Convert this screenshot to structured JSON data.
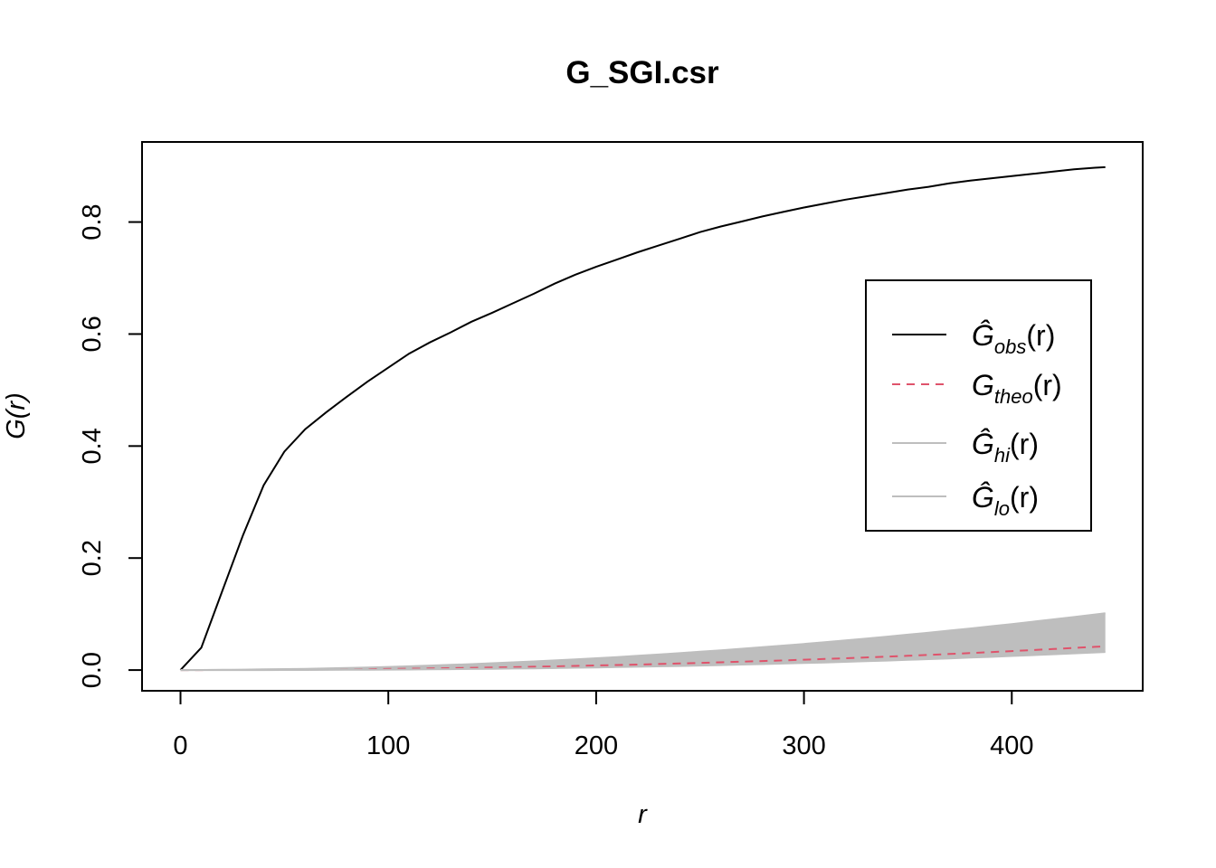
{
  "chart_data": {
    "type": "line",
    "title": "G_SGI.csr",
    "xlabel": "r",
    "ylabel": "G(r)",
    "xlim": [
      -18.5,
      463
    ],
    "ylim": [
      -0.037,
      0.943
    ],
    "x_ticks": [
      0,
      100,
      200,
      300,
      400
    ],
    "x_tick_labels": [
      "0",
      "100",
      "200",
      "300",
      "400"
    ],
    "y_ticks": [
      0.0,
      0.2,
      0.4,
      0.6,
      0.8
    ],
    "y_tick_labels": [
      "0.0",
      "0.2",
      "0.4",
      "0.6",
      "0.8"
    ],
    "grid": false,
    "legend_position": "right",
    "x": [
      0,
      10,
      20,
      30,
      40,
      50,
      60,
      70,
      80,
      90,
      100,
      110,
      120,
      130,
      140,
      150,
      160,
      170,
      180,
      190,
      200,
      210,
      220,
      230,
      240,
      250,
      260,
      270,
      280,
      290,
      300,
      310,
      320,
      330,
      340,
      350,
      360,
      370,
      380,
      390,
      400,
      410,
      420,
      430,
      440,
      445
    ],
    "series": [
      {
        "name": "obs",
        "label_main": "Ĝ",
        "label_sub": "obs",
        "label_tail": "(r)",
        "style": "solid",
        "color": "#000000",
        "values": [
          0.0,
          0.04,
          0.14,
          0.24,
          0.33,
          0.39,
          0.43,
          0.46,
          0.488,
          0.515,
          0.54,
          0.565,
          0.585,
          0.603,
          0.622,
          0.638,
          0.655,
          0.672,
          0.69,
          0.706,
          0.72,
          0.733,
          0.746,
          0.758,
          0.77,
          0.782,
          0.792,
          0.801,
          0.81,
          0.818,
          0.826,
          0.833,
          0.84,
          0.846,
          0.852,
          0.858,
          0.863,
          0.869,
          0.874,
          0.878,
          0.882,
          0.886,
          0.89,
          0.894,
          0.897,
          0.898
        ]
      },
      {
        "name": "theo",
        "label_main": "G",
        "label_sub": "theo",
        "label_tail": "(r)",
        "style": "dashed",
        "color": "#DF536B",
        "values": [
          0.0,
          0.0,
          0.0001,
          0.0002,
          0.0003,
          0.0005,
          0.0007,
          0.001,
          0.0013,
          0.0016,
          0.002,
          0.0024,
          0.0029,
          0.0034,
          0.004,
          0.0046,
          0.0052,
          0.0059,
          0.0066,
          0.0074,
          0.0082,
          0.009,
          0.0099,
          0.0108,
          0.0118,
          0.0128,
          0.0139,
          0.015,
          0.0161,
          0.0173,
          0.0185,
          0.0198,
          0.0211,
          0.0225,
          0.024,
          0.0255,
          0.0271,
          0.0287,
          0.0304,
          0.0321,
          0.0339,
          0.0357,
          0.0376,
          0.0395,
          0.0415,
          0.0425
        ]
      },
      {
        "name": "hi",
        "label_main": "Ĝ",
        "label_sub": "hi",
        "label_tail": "(r)",
        "style": "solid",
        "color": "#BEBEBE",
        "values": [
          0.0,
          0.0002,
          0.0005,
          0.0008,
          0.0012,
          0.0017,
          0.0023,
          0.003,
          0.0038,
          0.0047,
          0.0057,
          0.0068,
          0.008,
          0.0093,
          0.0107,
          0.0122,
          0.0138,
          0.0155,
          0.0173,
          0.0192,
          0.0212,
          0.0233,
          0.0255,
          0.0278,
          0.0302,
          0.0327,
          0.0353,
          0.038,
          0.0408,
          0.0437,
          0.0467,
          0.0498,
          0.053,
          0.0563,
          0.0597,
          0.0632,
          0.0668,
          0.0705,
          0.0743,
          0.0782,
          0.0822,
          0.0863,
          0.0905,
          0.0948,
          0.0992,
          0.1014
        ]
      },
      {
        "name": "lo",
        "label_main": "Ĝ",
        "label_sub": "lo",
        "label_tail": "(r)",
        "style": "solid",
        "color": "#BEBEBE",
        "values": [
          0.0,
          0.0,
          0.0,
          0.0,
          0.0,
          0.0001,
          0.0002,
          0.0003,
          0.0004,
          0.0006,
          0.0008,
          0.001,
          0.0013,
          0.0016,
          0.0019,
          0.0023,
          0.0027,
          0.0031,
          0.0036,
          0.0041,
          0.0047,
          0.0053,
          0.0059,
          0.0066,
          0.0073,
          0.0081,
          0.0089,
          0.0098,
          0.0107,
          0.0116,
          0.0126,
          0.0136,
          0.0147,
          0.0158,
          0.017,
          0.0182,
          0.0195,
          0.0208,
          0.0222,
          0.0236,
          0.0251,
          0.0266,
          0.0282,
          0.0298,
          0.0315,
          0.0323
        ]
      }
    ]
  }
}
